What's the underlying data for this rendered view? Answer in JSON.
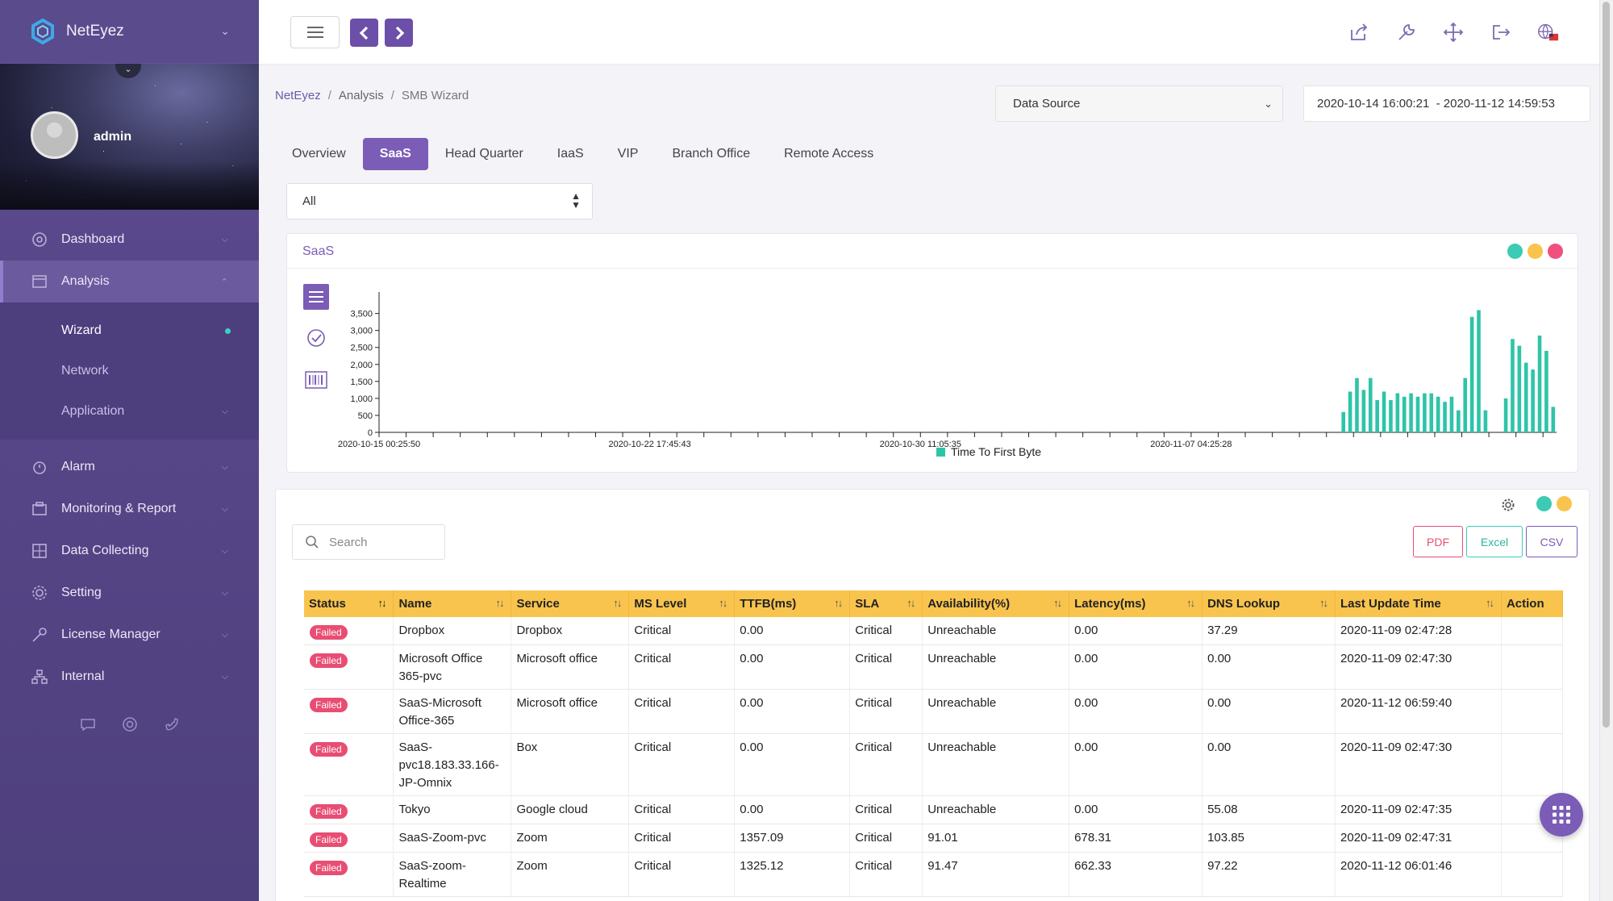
{
  "brand": {
    "name": "NetEyez"
  },
  "user": {
    "name": "admin"
  },
  "sidebar": {
    "items": [
      {
        "label": "Dashboard",
        "icon": "dashboard-icon"
      },
      {
        "label": "Analysis",
        "icon": "analysis-icon"
      },
      {
        "label": "Alarm",
        "icon": "alarm-icon"
      },
      {
        "label": "Monitoring & Report",
        "icon": "monitoring-icon"
      },
      {
        "label": "Data Collecting",
        "icon": "data-collecting-icon"
      },
      {
        "label": "Setting",
        "icon": "setting-icon"
      },
      {
        "label": "License Manager",
        "icon": "license-icon"
      },
      {
        "label": "Internal",
        "icon": "internal-icon"
      }
    ],
    "analysis_sub": [
      {
        "label": "Wizard"
      },
      {
        "label": "Network"
      },
      {
        "label": "Application"
      }
    ]
  },
  "breadcrumb": {
    "home": "NetEyez",
    "section": "Analysis",
    "current": "SMB Wizard"
  },
  "datasource": {
    "label": "Data Source"
  },
  "daterange": {
    "value": "2020-10-14 16:00:21  - 2020-11-12 14:59:53"
  },
  "tabs": [
    "Overview",
    "SaaS",
    "Head Quarter",
    "IaaS",
    "VIP",
    "Branch Office",
    "Remote Access"
  ],
  "active_tab": "SaaS",
  "filter": {
    "value": "All"
  },
  "chart_panel": {
    "title": "SaaS"
  },
  "colors": {
    "accent": "#7b5cb6",
    "teal": "#2ec4a8",
    "yellow": "#f9c44e",
    "pink": "#e84d73"
  },
  "chart_data": {
    "type": "bar",
    "title": "",
    "ylim": [
      0,
      3800
    ],
    "yticks": [
      "0",
      "500",
      "1,000",
      "1,500",
      "2,000",
      "2,500",
      "3,000",
      "3,500"
    ],
    "xtick_labels": [
      "2020-10-15 00:25:50",
      "2020-10-22 17:45:43",
      "2020-10-30 11:05:35",
      "2020-11-07 04:25:28"
    ],
    "x_range": [
      "2020-10-14 16:00:21",
      "2020-11-12 14:59:53"
    ],
    "legend": [
      "Time To First Byte"
    ],
    "series": [
      {
        "name": "Time To First Byte",
        "values": [
          0,
          0,
          0,
          0,
          0,
          0,
          0,
          0,
          0,
          0,
          0,
          0,
          0,
          0,
          0,
          0,
          0,
          0,
          0,
          0,
          0,
          0,
          0,
          0,
          0,
          0,
          0,
          0,
          0,
          0,
          0,
          0,
          0,
          0,
          0,
          0,
          0,
          0,
          0,
          0,
          0,
          0,
          0,
          0,
          0,
          0,
          0,
          0,
          0,
          0,
          0,
          0,
          0,
          0,
          0,
          0,
          0,
          0,
          0,
          0,
          0,
          0,
          0,
          0,
          0,
          0,
          0,
          0,
          0,
          0,
          0,
          0,
          0,
          0,
          0,
          0,
          0,
          0,
          0,
          0,
          0,
          0,
          0,
          0,
          0,
          0,
          0,
          0,
          0,
          0,
          0,
          0,
          0,
          0,
          0,
          0,
          0,
          0,
          0,
          0,
          0,
          0,
          0,
          0,
          0,
          0,
          0,
          0,
          0,
          0,
          0,
          0,
          0,
          0,
          0,
          0,
          0,
          0,
          0,
          0,
          0,
          0,
          0,
          0,
          0,
          0,
          0,
          0,
          0,
          0,
          0,
          0,
          0,
          0,
          0,
          0,
          0,
          0,
          0,
          0,
          0,
          0,
          600,
          1200,
          1600,
          1250,
          1600,
          950,
          1200,
          950,
          1150,
          1050,
          1150,
          1050,
          1150,
          1150,
          1050,
          900,
          1050,
          650,
          1600,
          3400,
          3600,
          650,
          0,
          0,
          1000,
          2750,
          2550,
          2050,
          1850,
          2850,
          2400,
          750
        ]
      }
    ]
  },
  "table": {
    "search_placeholder": "Search",
    "export": [
      "PDF",
      "Excel",
      "CSV"
    ],
    "columns": [
      "Status",
      "Name",
      "Service",
      "MS Level",
      "TTFB(ms)",
      "SLA",
      "Availability(%)",
      "Latency(ms)",
      "DNS Lookup",
      "Last Update Time",
      "Action"
    ],
    "rows": [
      {
        "status": "Failed",
        "name": "Dropbox",
        "service": "Dropbox",
        "ms_level": "Critical",
        "ttfb": "0.00",
        "sla": "Critical",
        "availability": "Unreachable",
        "latency": "0.00",
        "dns": "37.29",
        "updated": "2020-11-09 02:47:28"
      },
      {
        "status": "Failed",
        "name": "Microsoft Office 365-pvc",
        "service": "Microsoft office",
        "ms_level": "Critical",
        "ttfb": "0.00",
        "sla": "Critical",
        "availability": "Unreachable",
        "latency": "0.00",
        "dns": "0.00",
        "updated": "2020-11-09 02:47:30"
      },
      {
        "status": "Failed",
        "name": "SaaS-Microsoft Office-365",
        "service": "Microsoft office",
        "ms_level": "Critical",
        "ttfb": "0.00",
        "sla": "Critical",
        "availability": "Unreachable",
        "latency": "0.00",
        "dns": "0.00",
        "updated": "2020-11-12 06:59:40"
      },
      {
        "status": "Failed",
        "name": "SaaS-pvc18.183.33.166-JP-Omnix",
        "service": "Box",
        "ms_level": "Critical",
        "ttfb": "0.00",
        "sla": "Critical",
        "availability": "Unreachable",
        "latency": "0.00",
        "dns": "0.00",
        "updated": "2020-11-09 02:47:30"
      },
      {
        "status": "Failed",
        "name": "Tokyo",
        "service": "Google cloud",
        "ms_level": "Critical",
        "ttfb": "0.00",
        "sla": "Critical",
        "availability": "Unreachable",
        "latency": "0.00",
        "dns": "55.08",
        "updated": "2020-11-09 02:47:35"
      },
      {
        "status": "Failed",
        "name": "SaaS-Zoom-pvc",
        "service": "Zoom",
        "ms_level": "Critical",
        "ttfb": "1357.09",
        "sla": "Critical",
        "availability": "91.01",
        "latency": "678.31",
        "dns": "103.85",
        "updated": "2020-11-09 02:47:31"
      },
      {
        "status": "Failed",
        "name": "SaaS-zoom-Realtime",
        "service": "Zoom",
        "ms_level": "Critical",
        "ttfb": "1325.12",
        "sla": "Critical",
        "availability": "91.47",
        "latency": "662.33",
        "dns": "97.22",
        "updated": "2020-11-12 06:01:46"
      }
    ]
  }
}
